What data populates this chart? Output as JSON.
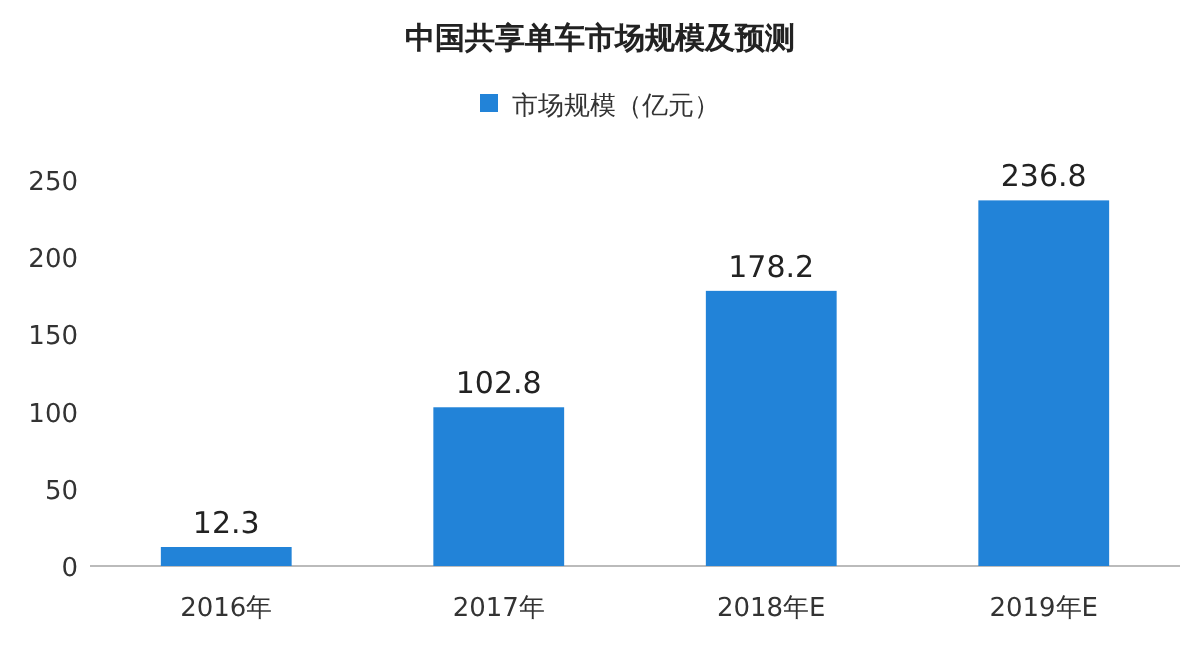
{
  "chart_data": {
    "type": "bar",
    "title": "中国共享单车市场规模及预测",
    "categories": [
      "2016年",
      "2017年",
      "2018年E",
      "2019年E"
    ],
    "series": [
      {
        "name": "市场规模（亿元）",
        "color": "#2283d8",
        "values": [
          12.3,
          102.8,
          178.2,
          236.8
        ]
      }
    ],
    "ylim": [
      0,
      250
    ],
    "yticks": [
      0,
      50,
      100,
      150,
      200,
      250
    ],
    "data_labels": true,
    "legend": "top"
  }
}
